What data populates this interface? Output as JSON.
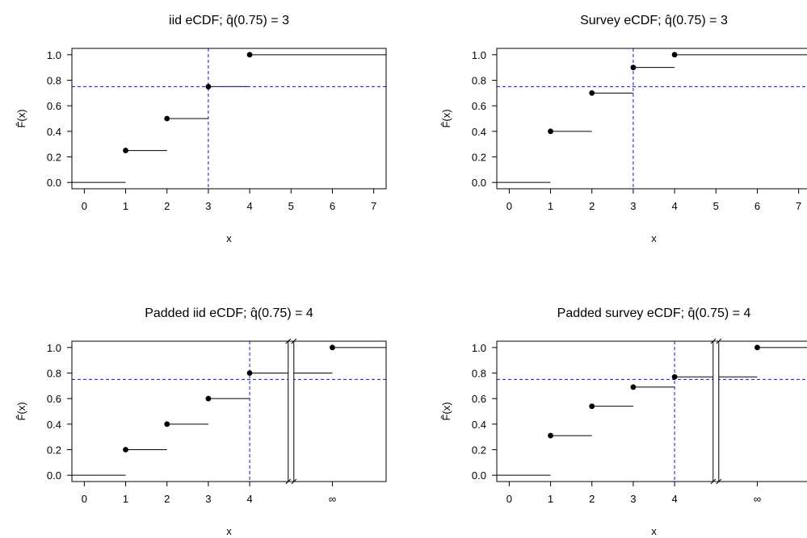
{
  "chart_data": [
    {
      "type": "step",
      "title": "iid eCDF; q̂(0.75) = 3",
      "title_pre": "iid eCDF; ",
      "title_post": "(0.75) = 3",
      "xlabel": "x",
      "ylabel": "F̂(x)",
      "xlim": [
        -0.3,
        7.3
      ],
      "ylim": [
        0,
        1
      ],
      "x_ticks": [
        0,
        1,
        2,
        3,
        4,
        5,
        6,
        7
      ],
      "x_tick_labels": [
        "0",
        "1",
        "2",
        "3",
        "4",
        "5",
        "6",
        "7"
      ],
      "y_ticks": [
        0.0,
        0.2,
        0.4,
        0.6,
        0.8,
        1.0
      ],
      "y_tick_labels": [
        "0.0",
        "0.2",
        "0.4",
        "0.6",
        "0.8",
        "1.0"
      ],
      "steps": [
        {
          "x": 1,
          "y": 0.25
        },
        {
          "x": 2,
          "y": 0.5
        },
        {
          "x": 3,
          "y": 0.75
        },
        {
          "x": 4,
          "y": 1.0
        }
      ],
      "initial_y": 0.0,
      "quantile_prob": 0.75,
      "quantile_x": 3,
      "axis_break": false,
      "grid": false,
      "reference_line_color": "#2b2bd9"
    },
    {
      "type": "step",
      "title": "Survey eCDF; q̂(0.75) = 3",
      "title_pre": "Survey eCDF; ",
      "title_post": "(0.75) = 3",
      "xlabel": "x",
      "ylabel": "F̂(x)",
      "xlim": [
        -0.3,
        7.3
      ],
      "ylim": [
        0,
        1
      ],
      "x_ticks": [
        0,
        1,
        2,
        3,
        4,
        5,
        6,
        7
      ],
      "x_tick_labels": [
        "0",
        "1",
        "2",
        "3",
        "4",
        "5",
        "6",
        "7"
      ],
      "y_ticks": [
        0.0,
        0.2,
        0.4,
        0.6,
        0.8,
        1.0
      ],
      "y_tick_labels": [
        "0.0",
        "0.2",
        "0.4",
        "0.6",
        "0.8",
        "1.0"
      ],
      "steps": [
        {
          "x": 1,
          "y": 0.4
        },
        {
          "x": 2,
          "y": 0.7
        },
        {
          "x": 3,
          "y": 0.9
        },
        {
          "x": 4,
          "y": 1.0
        }
      ],
      "initial_y": 0.0,
      "quantile_prob": 0.75,
      "quantile_x": 3,
      "axis_break": false,
      "grid": false,
      "reference_line_color": "#2b2bd9"
    },
    {
      "type": "step",
      "title": "Padded iid eCDF; q̂(0.75) = 4",
      "title_pre": "Padded iid eCDF; ",
      "title_post": "(0.75) = 4",
      "xlabel": "x",
      "ylabel": "F̂(x)",
      "xlim": [
        -0.3,
        7.3
      ],
      "ylim": [
        0,
        1
      ],
      "x_ticks": [
        0,
        1,
        2,
        3,
        4,
        6
      ],
      "x_tick_labels": [
        "0",
        "1",
        "2",
        "3",
        "4",
        "∞"
      ],
      "y_ticks": [
        0.0,
        0.2,
        0.4,
        0.6,
        0.8,
        1.0
      ],
      "y_tick_labels": [
        "0.0",
        "0.2",
        "0.4",
        "0.6",
        "0.8",
        "1.0"
      ],
      "steps": [
        {
          "x": 1,
          "y": 0.2
        },
        {
          "x": 2,
          "y": 0.4
        },
        {
          "x": 3,
          "y": 0.6
        },
        {
          "x": 4,
          "y": 0.8
        },
        {
          "x": 6,
          "y": 1.0
        }
      ],
      "initial_y": 0.0,
      "quantile_prob": 0.75,
      "quantile_x": 4,
      "axis_break": true,
      "infinity_label": "∞",
      "grid": false,
      "reference_line_color": "#2b2bd9"
    },
    {
      "type": "step",
      "title": "Padded survey eCDF; q̂(0.75) = 4",
      "title_pre": "Padded survey eCDF; ",
      "title_post": "(0.75) = 4",
      "xlabel": "x",
      "ylabel": "F̂(x)",
      "xlim": [
        -0.3,
        7.3
      ],
      "ylim": [
        0,
        1
      ],
      "x_ticks": [
        0,
        1,
        2,
        3,
        4,
        6
      ],
      "x_tick_labels": [
        "0",
        "1",
        "2",
        "3",
        "4",
        "∞"
      ],
      "y_ticks": [
        0.0,
        0.2,
        0.4,
        0.6,
        0.8,
        1.0
      ],
      "y_tick_labels": [
        "0.0",
        "0.2",
        "0.4",
        "0.6",
        "0.8",
        "1.0"
      ],
      "steps": [
        {
          "x": 1,
          "y": 0.31
        },
        {
          "x": 2,
          "y": 0.54
        },
        {
          "x": 3,
          "y": 0.69
        },
        {
          "x": 4,
          "y": 0.77
        },
        {
          "x": 6,
          "y": 1.0
        }
      ],
      "initial_y": 0.0,
      "quantile_prob": 0.75,
      "quantile_x": 4,
      "axis_break": true,
      "infinity_label": "∞",
      "grid": false,
      "reference_line_color": "#2b2bd9"
    }
  ]
}
